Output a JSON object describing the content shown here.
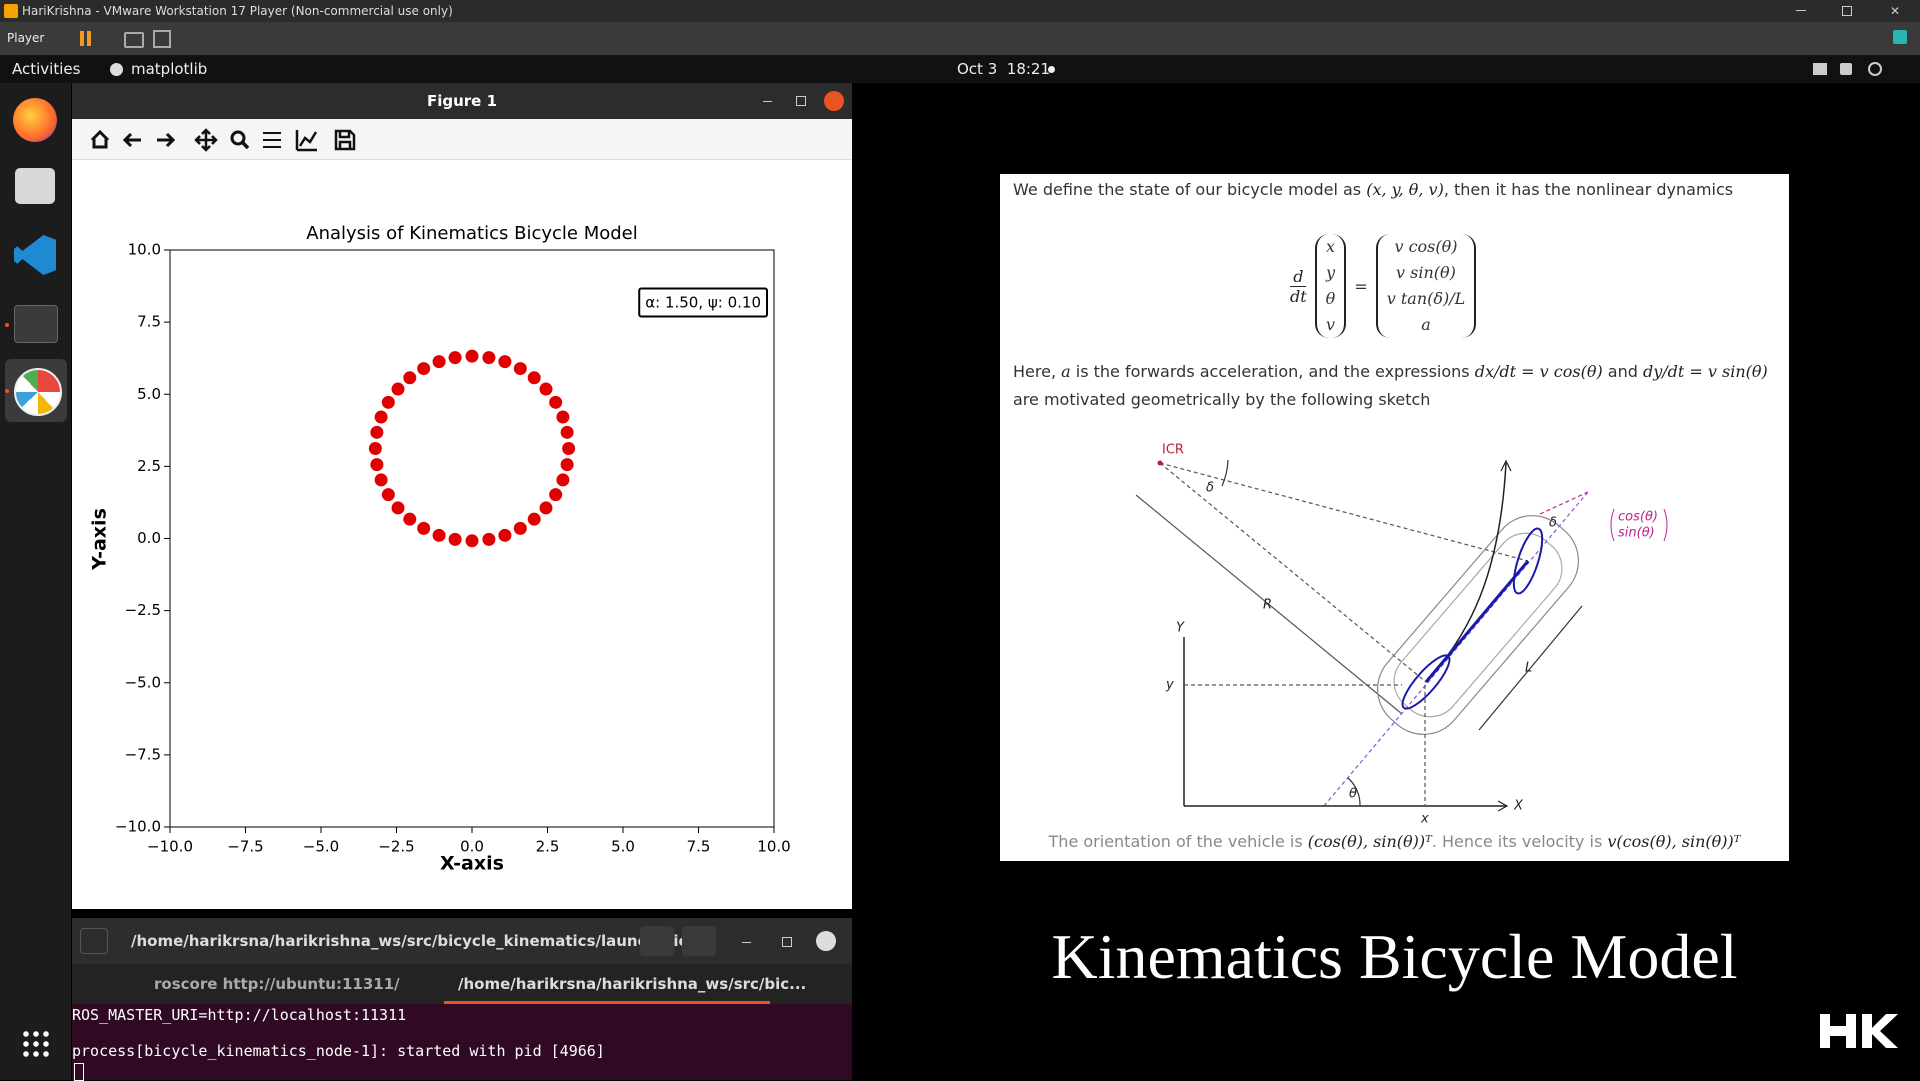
{
  "vm_window": {
    "title": "HariKrishna - VMware Workstation 17 Player (Non-commercial use only)",
    "menu": "Player"
  },
  "top_bar": {
    "activities": "Activities",
    "app": "matplotlib",
    "clock": "Oct 3  18:21"
  },
  "figure_window": {
    "title": "Figure 1"
  },
  "chart_data": {
    "type": "scatter",
    "title": "Analysis of Kinematics Bicycle Model",
    "x_label": "X-axis",
    "y_label": "Y-axis",
    "annotation": "α: 1.50, ψ: 0.10",
    "color": "#e00000",
    "grid": false,
    "xlim": [
      -10,
      10
    ],
    "ylim": [
      -10,
      10
    ],
    "xticks": [
      {
        "value": -10,
        "label": "−10.0"
      },
      {
        "value": -7.5,
        "label": "−7.5"
      },
      {
        "value": -5,
        "label": "−5.0"
      },
      {
        "value": -2.5,
        "label": "−2.5"
      },
      {
        "value": 0,
        "label": "0.0"
      },
      {
        "value": 2.5,
        "label": "2.5"
      },
      {
        "value": 5,
        "label": "5.0"
      },
      {
        "value": 7.5,
        "label": "7.5"
      },
      {
        "value": 10,
        "label": "10.0"
      }
    ],
    "yticks": [
      {
        "value": -10,
        "label": "−10.0"
      },
      {
        "value": -7.5,
        "label": "−7.5"
      },
      {
        "value": -5,
        "label": "−5.0"
      },
      {
        "value": -2.5,
        "label": "−2.5"
      },
      {
        "value": 0,
        "label": "0.0"
      },
      {
        "value": 2.5,
        "label": "2.5"
      },
      {
        "value": 5,
        "label": "5.0"
      },
      {
        "value": 7.5,
        "label": "7.5"
      },
      {
        "value": 10,
        "label": "10.0"
      }
    ],
    "x": [
      0,
      0.56,
      1.09,
      1.6,
      2.06,
      2.45,
      2.77,
      3.01,
      3.15,
      3.2,
      3.15,
      3.01,
      2.77,
      2.45,
      2.06,
      1.6,
      1.09,
      0.56,
      0,
      -0.56,
      -1.09,
      -1.6,
      -2.06,
      -2.45,
      -2.77,
      -3.01,
      -3.15,
      -3.2,
      -3.15,
      -3.01,
      -2.77,
      -2.45,
      -2.06,
      -1.6,
      -1.09,
      -0.56
    ],
    "values": [
      -0.08,
      -0.03,
      0.11,
      0.35,
      0.67,
      1.06,
      1.52,
      2.03,
      2.56,
      3.12,
      3.68,
      4.21,
      4.72,
      5.18,
      5.57,
      5.89,
      6.13,
      6.27,
      6.32,
      6.27,
      6.13,
      5.89,
      5.57,
      5.18,
      4.72,
      4.21,
      3.68,
      3.12,
      2.56,
      2.03,
      1.52,
      1.06,
      0.67,
      0.35,
      0.11,
      -0.03
    ]
  },
  "terminal": {
    "title": "/home/harikrsna/harikrishna_ws/src/bicycle_kinematics/launch/bic...",
    "tabs": [
      "roscore http://ubuntu:11311/",
      "/home/harikrsna/harikrishna_ws/src/bic..."
    ],
    "lines": [
      "ROS_MASTER_URI=http://localhost:11311",
      "process[bicycle_kinematics_node-1]: started with pid [4966]"
    ]
  },
  "slide": {
    "intro": [
      "We define the state of our bicycle model as ",
      "(x, y, θ, v)",
      ", then it has the nonlinear dynamics"
    ],
    "equation": {
      "derivative": [
        "d",
        "dt"
      ],
      "state": [
        "x",
        "y",
        "θ",
        "v"
      ],
      "equals": "=",
      "dynamics": [
        "v cos(θ)",
        "v sin(θ)",
        "v tan(δ)/L",
        "a"
      ]
    },
    "paragraph": [
      "Here, ",
      "a",
      " is the forwards acceleration, and the expressions ",
      "dx/dt = v cos(θ)",
      " and ",
      "dy/dt = v sin(θ)",
      " are motivated geometrically by the following sketch"
    ],
    "sketch": {
      "icr": "ICR",
      "delta": "δ",
      "R": "R",
      "L": "L",
      "Y": "Y",
      "X": "X",
      "y": "y",
      "x": "x",
      "theta": "θ",
      "heading": [
        "cos(θ)",
        "sin(θ)"
      ]
    },
    "caption": [
      "The orientation of the vehicle is ",
      "(cos(θ), sin(θ))ᵀ",
      ". Hence its velocity is ",
      "v(cos(θ), sin(θ))ᵀ"
    ]
  },
  "slide_title": "Kinematics Bicycle Model"
}
